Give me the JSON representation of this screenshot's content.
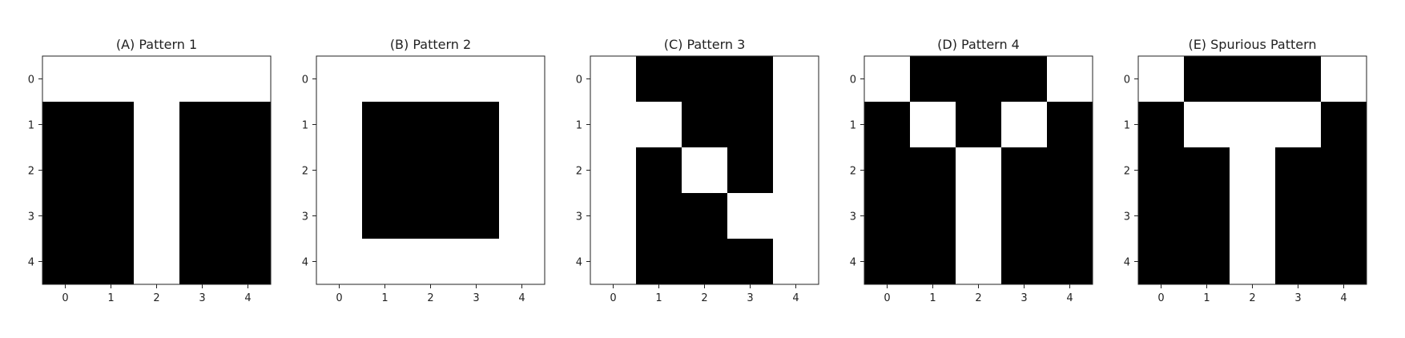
{
  "figure": {
    "colors": {
      "black": "#000000",
      "white": "#ffffff",
      "frame": "#222222"
    }
  },
  "chart_data": [
    {
      "type": "heatmap",
      "title": "(A) Pattern 1",
      "x_ticks": [
        "0",
        "1",
        "2",
        "3",
        "4"
      ],
      "y_ticks": [
        "0",
        "1",
        "2",
        "3",
        "4"
      ],
      "grid": false,
      "colormap": "binary (1 = black, 0 = white)",
      "values": [
        [
          0,
          0,
          0,
          0,
          0
        ],
        [
          1,
          1,
          0,
          1,
          1
        ],
        [
          1,
          1,
          0,
          1,
          1
        ],
        [
          1,
          1,
          0,
          1,
          1
        ],
        [
          1,
          1,
          0,
          1,
          1
        ]
      ]
    },
    {
      "type": "heatmap",
      "title": "(B) Pattern 2",
      "x_ticks": [
        "0",
        "1",
        "2",
        "3",
        "4"
      ],
      "y_ticks": [
        "0",
        "1",
        "2",
        "3",
        "4"
      ],
      "grid": false,
      "colormap": "binary (1 = black, 0 = white)",
      "values": [
        [
          0,
          0,
          0,
          0,
          0
        ],
        [
          0,
          1,
          1,
          1,
          0
        ],
        [
          0,
          1,
          1,
          1,
          0
        ],
        [
          0,
          1,
          1,
          1,
          0
        ],
        [
          0,
          0,
          0,
          0,
          0
        ]
      ]
    },
    {
      "type": "heatmap",
      "title": "(C) Pattern 3",
      "x_ticks": [
        "0",
        "1",
        "2",
        "3",
        "4"
      ],
      "y_ticks": [
        "0",
        "1",
        "2",
        "3",
        "4"
      ],
      "grid": false,
      "colormap": "binary (1 = black, 0 = white)",
      "values": [
        [
          0,
          1,
          1,
          1,
          0
        ],
        [
          0,
          0,
          1,
          1,
          0
        ],
        [
          0,
          1,
          0,
          1,
          0
        ],
        [
          0,
          1,
          1,
          0,
          0
        ],
        [
          0,
          1,
          1,
          1,
          0
        ]
      ]
    },
    {
      "type": "heatmap",
      "title": "(D) Pattern 4",
      "x_ticks": [
        "0",
        "1",
        "2",
        "3",
        "4"
      ],
      "y_ticks": [
        "0",
        "1",
        "2",
        "3",
        "4"
      ],
      "grid": false,
      "colormap": "binary (1 = black, 0 = white)",
      "values": [
        [
          0,
          1,
          1,
          1,
          0
        ],
        [
          1,
          0,
          1,
          0,
          1
        ],
        [
          1,
          1,
          0,
          1,
          1
        ],
        [
          1,
          1,
          0,
          1,
          1
        ],
        [
          1,
          1,
          0,
          1,
          1
        ]
      ]
    },
    {
      "type": "heatmap",
      "title": "(E) Spurious Pattern",
      "x_ticks": [
        "0",
        "1",
        "2",
        "3",
        "4"
      ],
      "y_ticks": [
        "0",
        "1",
        "2",
        "3",
        "4"
      ],
      "grid": false,
      "colormap": "binary (1 = black, 0 = white)",
      "values": [
        [
          0,
          1,
          1,
          1,
          0
        ],
        [
          1,
          0,
          0,
          0,
          1
        ],
        [
          1,
          1,
          0,
          1,
          1
        ],
        [
          1,
          1,
          0,
          1,
          1
        ],
        [
          1,
          1,
          0,
          1,
          1
        ]
      ]
    }
  ]
}
